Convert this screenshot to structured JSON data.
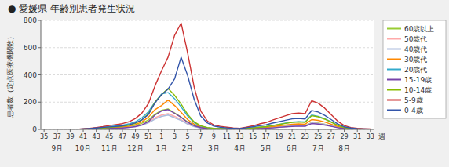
{
  "chart_data": {
    "type": "line",
    "title": "● 愛媛県  年齢別患者発生状況",
    "ylabel": "患者数（定点医療機関数）",
    "xlabel": "週",
    "categories": [
      "35",
      null,
      "37",
      null,
      "39",
      null,
      "41",
      null,
      "43",
      null,
      "45",
      null,
      "47",
      null,
      "49",
      null,
      "51",
      null,
      "1",
      null,
      "3",
      null,
      "5",
      null,
      "7",
      null,
      "9",
      null,
      "11",
      null,
      "13",
      null,
      "15",
      null,
      "17",
      null,
      "19",
      null,
      "21",
      null,
      "23",
      null,
      "25",
      null,
      "27",
      null,
      "29",
      null,
      "31",
      null,
      "33"
    ],
    "annotations": [
      {
        "text": "9月",
        "x": 2
      },
      {
        "text": "10月",
        "x": 6
      },
      {
        "text": "11月",
        "x": 10
      },
      {
        "text": "12月",
        "x": 14
      },
      {
        "text": "1月",
        "x": 18
      },
      {
        "text": "2月",
        "x": 22
      },
      {
        "text": "3月",
        "x": 26
      },
      {
        "text": "4月",
        "x": 30
      },
      {
        "text": "5月",
        "x": 34
      },
      {
        "text": "6月",
        "x": 38
      },
      {
        "text": "7月",
        "x": 42
      },
      {
        "text": "8月",
        "x": 46
      }
    ],
    "ylim": [
      0,
      800
    ],
    "yticks": [
      0,
      200,
      400,
      600,
      800
    ],
    "grid": true,
    "legend": "right",
    "series": [
      {
        "name": "60歳以上",
        "color": "#99cc33",
        "values": [
          0,
          0,
          0,
          0,
          0,
          0,
          2,
          4,
          6,
          8,
          10,
          12,
          15,
          20,
          28,
          45,
          70,
          110,
          140,
          150,
          120,
          90,
          55,
          28,
          14,
          7,
          4,
          3,
          3,
          2,
          2,
          4,
          6,
          8,
          10,
          14,
          18,
          22,
          26,
          28,
          28,
          50,
          46,
          38,
          26,
          15,
          7,
          3,
          2,
          1,
          1
        ]
      },
      {
        "name": "50歳代",
        "color": "#ffaaaa",
        "values": [
          0,
          0,
          0,
          0,
          0,
          0,
          1,
          2,
          4,
          6,
          8,
          10,
          12,
          16,
          22,
          35,
          55,
          85,
          105,
          115,
          95,
          72,
          42,
          22,
          10,
          5,
          3,
          2,
          2,
          1,
          1,
          3,
          5,
          7,
          9,
          12,
          16,
          20,
          23,
          25,
          25,
          48,
          44,
          36,
          25,
          14,
          6,
          3,
          2,
          1,
          1
        ]
      },
      {
        "name": "40歳代",
        "color": "#aabbdd",
        "values": [
          0,
          0,
          0,
          0,
          0,
          0,
          1,
          2,
          3,
          5,
          7,
          9,
          11,
          15,
          20,
          30,
          48,
          75,
          95,
          105,
          85,
          65,
          38,
          20,
          10,
          5,
          3,
          2,
          2,
          1,
          1,
          3,
          5,
          7,
          9,
          12,
          16,
          20,
          23,
          25,
          25,
          48,
          44,
          36,
          25,
          14,
          6,
          3,
          2,
          1,
          1
        ]
      },
      {
        "name": "30歳代",
        "color": "#ff8800",
        "values": [
          0,
          0,
          0,
          0,
          0,
          0,
          2,
          4,
          6,
          8,
          12,
          15,
          18,
          24,
          35,
          55,
          90,
          145,
          175,
          215,
          175,
          125,
          72,
          38,
          18,
          9,
          5,
          4,
          3,
          2,
          2,
          5,
          8,
          11,
          14,
          20,
          26,
          32,
          37,
          40,
          38,
          72,
          66,
          54,
          38,
          21,
          10,
          5,
          3,
          2,
          1
        ]
      },
      {
        "name": "20歳代",
        "color": "#33aacc",
        "values": [
          0,
          0,
          0,
          0,
          0,
          0,
          3,
          6,
          10,
          15,
          20,
          25,
          30,
          40,
          56,
          85,
          130,
          200,
          260,
          270,
          225,
          165,
          98,
          50,
          24,
          12,
          8,
          6,
          5,
          4,
          3,
          7,
          11,
          16,
          20,
          28,
          37,
          46,
          53,
          57,
          55,
          105,
          96,
          78,
          55,
          30,
          14,
          7,
          4,
          2,
          2
        ]
      },
      {
        "name": "15-19歳",
        "color": "#7744aa",
        "values": [
          0,
          0,
          0,
          0,
          0,
          0,
          1,
          2,
          3,
          5,
          7,
          9,
          10,
          14,
          20,
          32,
          58,
          105,
          135,
          145,
          118,
          88,
          52,
          26,
          13,
          6,
          4,
          3,
          2,
          2,
          1,
          2,
          4,
          6,
          8,
          11,
          15,
          19,
          22,
          24,
          23,
          43,
          39,
          32,
          22,
          12,
          6,
          3,
          2,
          1,
          1
        ]
      },
      {
        "name": "10-14歳",
        "color": "#88bb00",
        "values": [
          0,
          0,
          0,
          0,
          0,
          0,
          2,
          4,
          7,
          10,
          14,
          18,
          22,
          30,
          44,
          70,
          115,
          200,
          255,
          300,
          250,
          185,
          110,
          55,
          27,
          14,
          8,
          6,
          5,
          4,
          3,
          7,
          11,
          16,
          20,
          28,
          36,
          44,
          51,
          55,
          52,
          100,
          92,
          75,
          52,
          29,
          14,
          7,
          4,
          2,
          2
        ]
      },
      {
        "name": "5-9歳",
        "color": "#cc3333",
        "values": [
          0,
          0,
          0,
          0,
          0,
          0,
          4,
          8,
          14,
          20,
          28,
          35,
          42,
          56,
          80,
          120,
          190,
          320,
          430,
          530,
          690,
          780,
          560,
          310,
          135,
          62,
          32,
          22,
          16,
          11,
          8,
          16,
          26,
          40,
          50,
          68,
          84,
          100,
          115,
          120,
          115,
          210,
          192,
          156,
          108,
          60,
          28,
          14,
          8,
          5,
          3
        ]
      },
      {
        "name": "0-4歳",
        "color": "#3355aa",
        "values": [
          0,
          0,
          0,
          0,
          0,
          0,
          3,
          6,
          10,
          14,
          18,
          22,
          26,
          34,
          48,
          70,
          110,
          195,
          255,
          295,
          370,
          530,
          395,
          220,
          98,
          48,
          24,
          16,
          11,
          8,
          6,
          12,
          19,
          27,
          33,
          46,
          56,
          67,
          77,
          80,
          76,
          138,
          127,
          103,
          72,
          40,
          19,
          10,
          5,
          3,
          2
        ]
      }
    ]
  }
}
